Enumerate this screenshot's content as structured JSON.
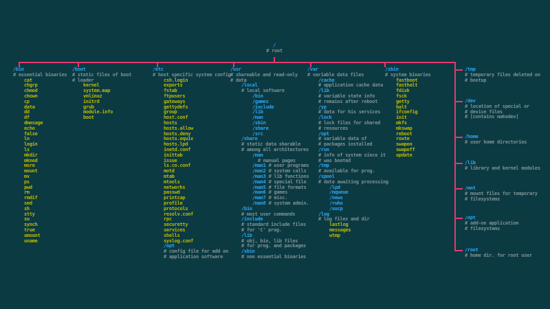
{
  "colors": {
    "background": "#0b3a43",
    "branch_line": "#e8386d",
    "directory": "#2ea6f2",
    "file": "#bdb800",
    "comment": "#7e9193"
  },
  "root": {
    "label": "/",
    "comment": "# root"
  },
  "columns": [
    {
      "id": "bin",
      "lines": [
        {
          "t": "dir",
          "i": 0,
          "text": "/bin"
        },
        {
          "t": "comment",
          "i": 0,
          "text": "# essential binaries"
        },
        {
          "t": "file",
          "i": 1,
          "text": "cat"
        },
        {
          "t": "file",
          "i": 1,
          "text": "chgrp"
        },
        {
          "t": "file",
          "i": 1,
          "text": "chmod"
        },
        {
          "t": "file",
          "i": 1,
          "text": "chown"
        },
        {
          "t": "file",
          "i": 1,
          "text": "cp"
        },
        {
          "t": "file",
          "i": 1,
          "text": "data"
        },
        {
          "t": "file",
          "i": 1,
          "text": "dd"
        },
        {
          "t": "file",
          "i": 1,
          "text": "df"
        },
        {
          "t": "file",
          "i": 1,
          "text": "dmesage"
        },
        {
          "t": "file",
          "i": 1,
          "text": "echo"
        },
        {
          "t": "file",
          "i": 1,
          "text": "false"
        },
        {
          "t": "file",
          "i": 1,
          "text": "ln"
        },
        {
          "t": "file",
          "i": 1,
          "text": "login"
        },
        {
          "t": "file",
          "i": 1,
          "text": "ls"
        },
        {
          "t": "file",
          "i": 1,
          "text": "mkdir"
        },
        {
          "t": "file",
          "i": 1,
          "text": "mknod"
        },
        {
          "t": "file",
          "i": 1,
          "text": "more"
        },
        {
          "t": "file",
          "i": 1,
          "text": "mount"
        },
        {
          "t": "file",
          "i": 1,
          "text": "mv"
        },
        {
          "t": "file",
          "i": 1,
          "text": "ps"
        },
        {
          "t": "file",
          "i": 1,
          "text": "pwd"
        },
        {
          "t": "file",
          "i": 1,
          "text": "rm"
        },
        {
          "t": "file",
          "i": 1,
          "text": "rmdif"
        },
        {
          "t": "file",
          "i": 1,
          "text": "sed"
        },
        {
          "t": "file",
          "i": 1,
          "text": "sh"
        },
        {
          "t": "file",
          "i": 1,
          "text": "stty"
        },
        {
          "t": "file",
          "i": 1,
          "text": "su"
        },
        {
          "t": "file",
          "i": 1,
          "text": "synch"
        },
        {
          "t": "file",
          "i": 1,
          "text": "true"
        },
        {
          "t": "file",
          "i": 1,
          "text": "umount"
        },
        {
          "t": "file",
          "i": 1,
          "text": "uname"
        }
      ]
    },
    {
      "id": "boot",
      "lines": [
        {
          "t": "dir",
          "i": 0,
          "text": "/boot"
        },
        {
          "t": "comment",
          "i": 0,
          "text": "# static files of boot"
        },
        {
          "t": "comment",
          "i": 0,
          "text": "# loader"
        },
        {
          "t": "file",
          "i": 1,
          "text": "kernel"
        },
        {
          "t": "file",
          "i": 1,
          "text": "system.map"
        },
        {
          "t": "file",
          "i": 1,
          "text": "vmlinuz"
        },
        {
          "t": "file",
          "i": 1,
          "text": "initrd"
        },
        {
          "t": "file",
          "i": 1,
          "text": "grub"
        },
        {
          "t": "file",
          "i": 1,
          "text": "module.info"
        },
        {
          "t": "file",
          "i": 1,
          "text": "boot"
        }
      ]
    },
    {
      "id": "etc",
      "lines": [
        {
          "t": "dir",
          "i": 0,
          "text": "/etc"
        },
        {
          "t": "comment",
          "i": 0,
          "text": "# host specific system config"
        },
        {
          "t": "file",
          "i": 1,
          "text": "csh.login"
        },
        {
          "t": "file",
          "i": 1,
          "text": "exports"
        },
        {
          "t": "file",
          "i": 1,
          "text": "fstab"
        },
        {
          "t": "file",
          "i": 1,
          "text": "ftpusers"
        },
        {
          "t": "file",
          "i": 1,
          "text": "gateways"
        },
        {
          "t": "file",
          "i": 1,
          "text": "gettydefs"
        },
        {
          "t": "file",
          "i": 1,
          "text": "group"
        },
        {
          "t": "file",
          "i": 1,
          "text": "host.conf"
        },
        {
          "t": "file",
          "i": 1,
          "text": "hosts"
        },
        {
          "t": "file",
          "i": 1,
          "text": "hosts.allow"
        },
        {
          "t": "file",
          "i": 1,
          "text": "hosts.deny"
        },
        {
          "t": "file",
          "i": 1,
          "text": "hosts.equiv"
        },
        {
          "t": "file",
          "i": 1,
          "text": "hosts.lpd"
        },
        {
          "t": "file",
          "i": 1,
          "text": "inetd.conf"
        },
        {
          "t": "file",
          "i": 1,
          "text": "inittab"
        },
        {
          "t": "file",
          "i": 1,
          "text": "issue"
        },
        {
          "t": "file",
          "i": 1,
          "text": "ls.co.conf"
        },
        {
          "t": "file",
          "i": 1,
          "text": "motd"
        },
        {
          "t": "file",
          "i": 1,
          "text": "mtab"
        },
        {
          "t": "file",
          "i": 1,
          "text": "mtools"
        },
        {
          "t": "file",
          "i": 1,
          "text": "networks"
        },
        {
          "t": "file",
          "i": 1,
          "text": "passwd"
        },
        {
          "t": "file",
          "i": 1,
          "text": "printcap"
        },
        {
          "t": "file",
          "i": 1,
          "text": "profile"
        },
        {
          "t": "file",
          "i": 1,
          "text": "protocols"
        },
        {
          "t": "file",
          "i": 1,
          "text": "resolv.conf"
        },
        {
          "t": "file",
          "i": 1,
          "text": "rpc"
        },
        {
          "t": "file",
          "i": 1,
          "text": "securetty"
        },
        {
          "t": "file",
          "i": 1,
          "text": "services"
        },
        {
          "t": "file",
          "i": 1,
          "text": "shells"
        },
        {
          "t": "file",
          "i": 1,
          "text": "syslog.conf"
        },
        {
          "t": "dir",
          "i": 1,
          "text": "/opt"
        },
        {
          "t": "comment",
          "i": 1,
          "text": "# config file for add on"
        },
        {
          "t": "comment",
          "i": 1,
          "text": "# application software"
        }
      ]
    },
    {
      "id": "usr",
      "lines": [
        {
          "t": "dir",
          "i": 0,
          "text": "/usr"
        },
        {
          "t": "comment",
          "i": 0,
          "text": "# shareable and read-only"
        },
        {
          "t": "comment",
          "i": 0,
          "text": "# data"
        },
        {
          "t": "dir",
          "i": 1,
          "text": "/local"
        },
        {
          "t": "comment",
          "i": 1,
          "text": "# local software"
        },
        {
          "t": "dir",
          "i": 2,
          "text": "/bin"
        },
        {
          "t": "dir",
          "i": 2,
          "text": "/games"
        },
        {
          "t": "dir",
          "i": 2,
          "text": "/include"
        },
        {
          "t": "dir",
          "i": 2,
          "text": "/lib"
        },
        {
          "t": "dir",
          "i": 2,
          "text": "/man"
        },
        {
          "t": "dir",
          "i": 2,
          "text": "/sbin"
        },
        {
          "t": "dir",
          "i": 2,
          "text": "/share"
        },
        {
          "t": "dir",
          "i": 2,
          "text": "/src"
        },
        {
          "t": "dir",
          "i": 1,
          "text": "/share"
        },
        {
          "t": "comment",
          "i": 1,
          "text": "# static data sharable"
        },
        {
          "t": "comment",
          "i": 1,
          "text": "# among all architectures"
        },
        {
          "t": "dir",
          "i": 2,
          "text": "/man"
        },
        {
          "t": "comment",
          "i": 3,
          "text": "# manual pages"
        },
        {
          "t": "dir",
          "i": 2,
          "text": "/man1",
          "c": "# user programs"
        },
        {
          "t": "dir",
          "i": 2,
          "text": "/man2",
          "c": "# system calls"
        },
        {
          "t": "dir",
          "i": 2,
          "text": "/man3",
          "c": "# lib functions"
        },
        {
          "t": "dir",
          "i": 2,
          "text": "/man4",
          "c": "# special file"
        },
        {
          "t": "dir",
          "i": 2,
          "text": "/man5",
          "c": "# file formats"
        },
        {
          "t": "dir",
          "i": 2,
          "text": "/man6",
          "c": "# games"
        },
        {
          "t": "dir",
          "i": 2,
          "text": "/man7",
          "c": "# misc."
        },
        {
          "t": "dir",
          "i": 2,
          "text": "/man8",
          "c": "# system admin."
        },
        {
          "t": "dir",
          "i": 1,
          "text": "/bin"
        },
        {
          "t": "comment",
          "i": 1,
          "text": "# most user commands"
        },
        {
          "t": "dir",
          "i": 1,
          "text": "/include"
        },
        {
          "t": "comment",
          "i": 1,
          "text": "# standard include files"
        },
        {
          "t": "comment",
          "i": 1,
          "text": "# for 'C' prog."
        },
        {
          "t": "dir",
          "i": 1,
          "text": "/lib"
        },
        {
          "t": "comment",
          "i": 1,
          "text": "# obj, bin, lib files"
        },
        {
          "t": "comment",
          "i": 1,
          "text": "# for prog. and packages"
        },
        {
          "t": "dir",
          "i": 1,
          "text": "/sbin"
        },
        {
          "t": "comment",
          "i": 1,
          "text": "# non essential binaries"
        }
      ]
    },
    {
      "id": "var",
      "lines": [
        {
          "t": "dir",
          "i": 0,
          "text": "/var"
        },
        {
          "t": "comment",
          "i": 0,
          "text": "# variable data files"
        },
        {
          "t": "dir",
          "i": 1,
          "text": "/cache"
        },
        {
          "t": "comment",
          "i": 1,
          "text": "# application cache data"
        },
        {
          "t": "dir",
          "i": 1,
          "text": "/lib"
        },
        {
          "t": "comment",
          "i": 1,
          "text": "# variable state info"
        },
        {
          "t": "comment",
          "i": 1,
          "text": "# remains after reboot"
        },
        {
          "t": "dir",
          "i": 1,
          "text": "/yp"
        },
        {
          "t": "comment",
          "i": 1,
          "text": "# data for his services"
        },
        {
          "t": "dir",
          "i": 1,
          "text": "/lock"
        },
        {
          "t": "comment",
          "i": 1,
          "text": "# lock files for shared"
        },
        {
          "t": "comment",
          "i": 1,
          "text": "# resources"
        },
        {
          "t": "dir",
          "i": 1,
          "text": "/opt"
        },
        {
          "t": "comment",
          "i": 1,
          "text": "# variable data of"
        },
        {
          "t": "comment",
          "i": 1,
          "text": "# packages installed"
        },
        {
          "t": "dir",
          "i": 1,
          "text": "/run"
        },
        {
          "t": "comment",
          "i": 1,
          "text": "# info of system since it"
        },
        {
          "t": "comment",
          "i": 1,
          "text": "# was booted"
        },
        {
          "t": "dir",
          "i": 1,
          "text": "/tmp"
        },
        {
          "t": "comment",
          "i": 1,
          "text": "# available for prog."
        },
        {
          "t": "dir",
          "i": 1,
          "text": "/spool"
        },
        {
          "t": "comment",
          "i": 1,
          "text": "# data awaiting processing"
        },
        {
          "t": "dir",
          "i": 2,
          "text": "/lpd"
        },
        {
          "t": "dir",
          "i": 2,
          "text": "/mqueue"
        },
        {
          "t": "dir",
          "i": 2,
          "text": "/news"
        },
        {
          "t": "dir",
          "i": 2,
          "text": "/rwho"
        },
        {
          "t": "dir",
          "i": 2,
          "text": "/uucp"
        },
        {
          "t": "dir",
          "i": 1,
          "text": "/log"
        },
        {
          "t": "comment",
          "i": 1,
          "text": "# log files and dir"
        },
        {
          "t": "file",
          "i": 2,
          "text": "lastlog"
        },
        {
          "t": "file",
          "i": 2,
          "text": "messages"
        },
        {
          "t": "file",
          "i": 2,
          "text": "wtmp"
        }
      ]
    },
    {
      "id": "sbin",
      "lines": [
        {
          "t": "dir",
          "i": 0,
          "text": "/sbin"
        },
        {
          "t": "comment",
          "i": 0,
          "text": "# system binaries"
        },
        {
          "t": "file",
          "i": 1,
          "text": "fastboot"
        },
        {
          "t": "file",
          "i": 1,
          "text": "fasthalt"
        },
        {
          "t": "file",
          "i": 1,
          "text": "fdisk"
        },
        {
          "t": "file",
          "i": 1,
          "text": "fsck"
        },
        {
          "t": "file",
          "i": 1,
          "text": "getty"
        },
        {
          "t": "file",
          "i": 1,
          "text": "halt"
        },
        {
          "t": "file",
          "i": 1,
          "text": "ifconfig"
        },
        {
          "t": "file",
          "i": 1,
          "text": "init"
        },
        {
          "t": "file",
          "i": 1,
          "text": "mkfs"
        },
        {
          "t": "file",
          "i": 1,
          "text": "mkswap"
        },
        {
          "t": "file",
          "i": 1,
          "text": "reboot"
        },
        {
          "t": "file",
          "i": 1,
          "text": "route"
        },
        {
          "t": "file",
          "i": 1,
          "text": "swapon"
        },
        {
          "t": "file",
          "i": 1,
          "text": "swapoff"
        },
        {
          "t": "file",
          "i": 1,
          "text": "update"
        }
      ]
    }
  ],
  "right_branches": [
    {
      "label": "/tmp",
      "comments": [
        "# temporary files deleted on",
        "# bootup"
      ]
    },
    {
      "label": "/dev",
      "comments": [
        "# location of special or",
        "# device files",
        "# [contains makedev]"
      ]
    },
    {
      "label": "/home",
      "comments": [
        "# user home directories"
      ]
    },
    {
      "label": "/lib",
      "comments": [
        "# library and kernel modules"
      ]
    },
    {
      "label": "/mnt",
      "comments": [
        "# mount files for temporary",
        "# filesystems"
      ]
    },
    {
      "label": "/opt",
      "comments": [
        "# add-on application",
        "# filesystems"
      ]
    },
    {
      "label": "/root",
      "comments": [
        "# home dir. for root user"
      ]
    }
  ]
}
